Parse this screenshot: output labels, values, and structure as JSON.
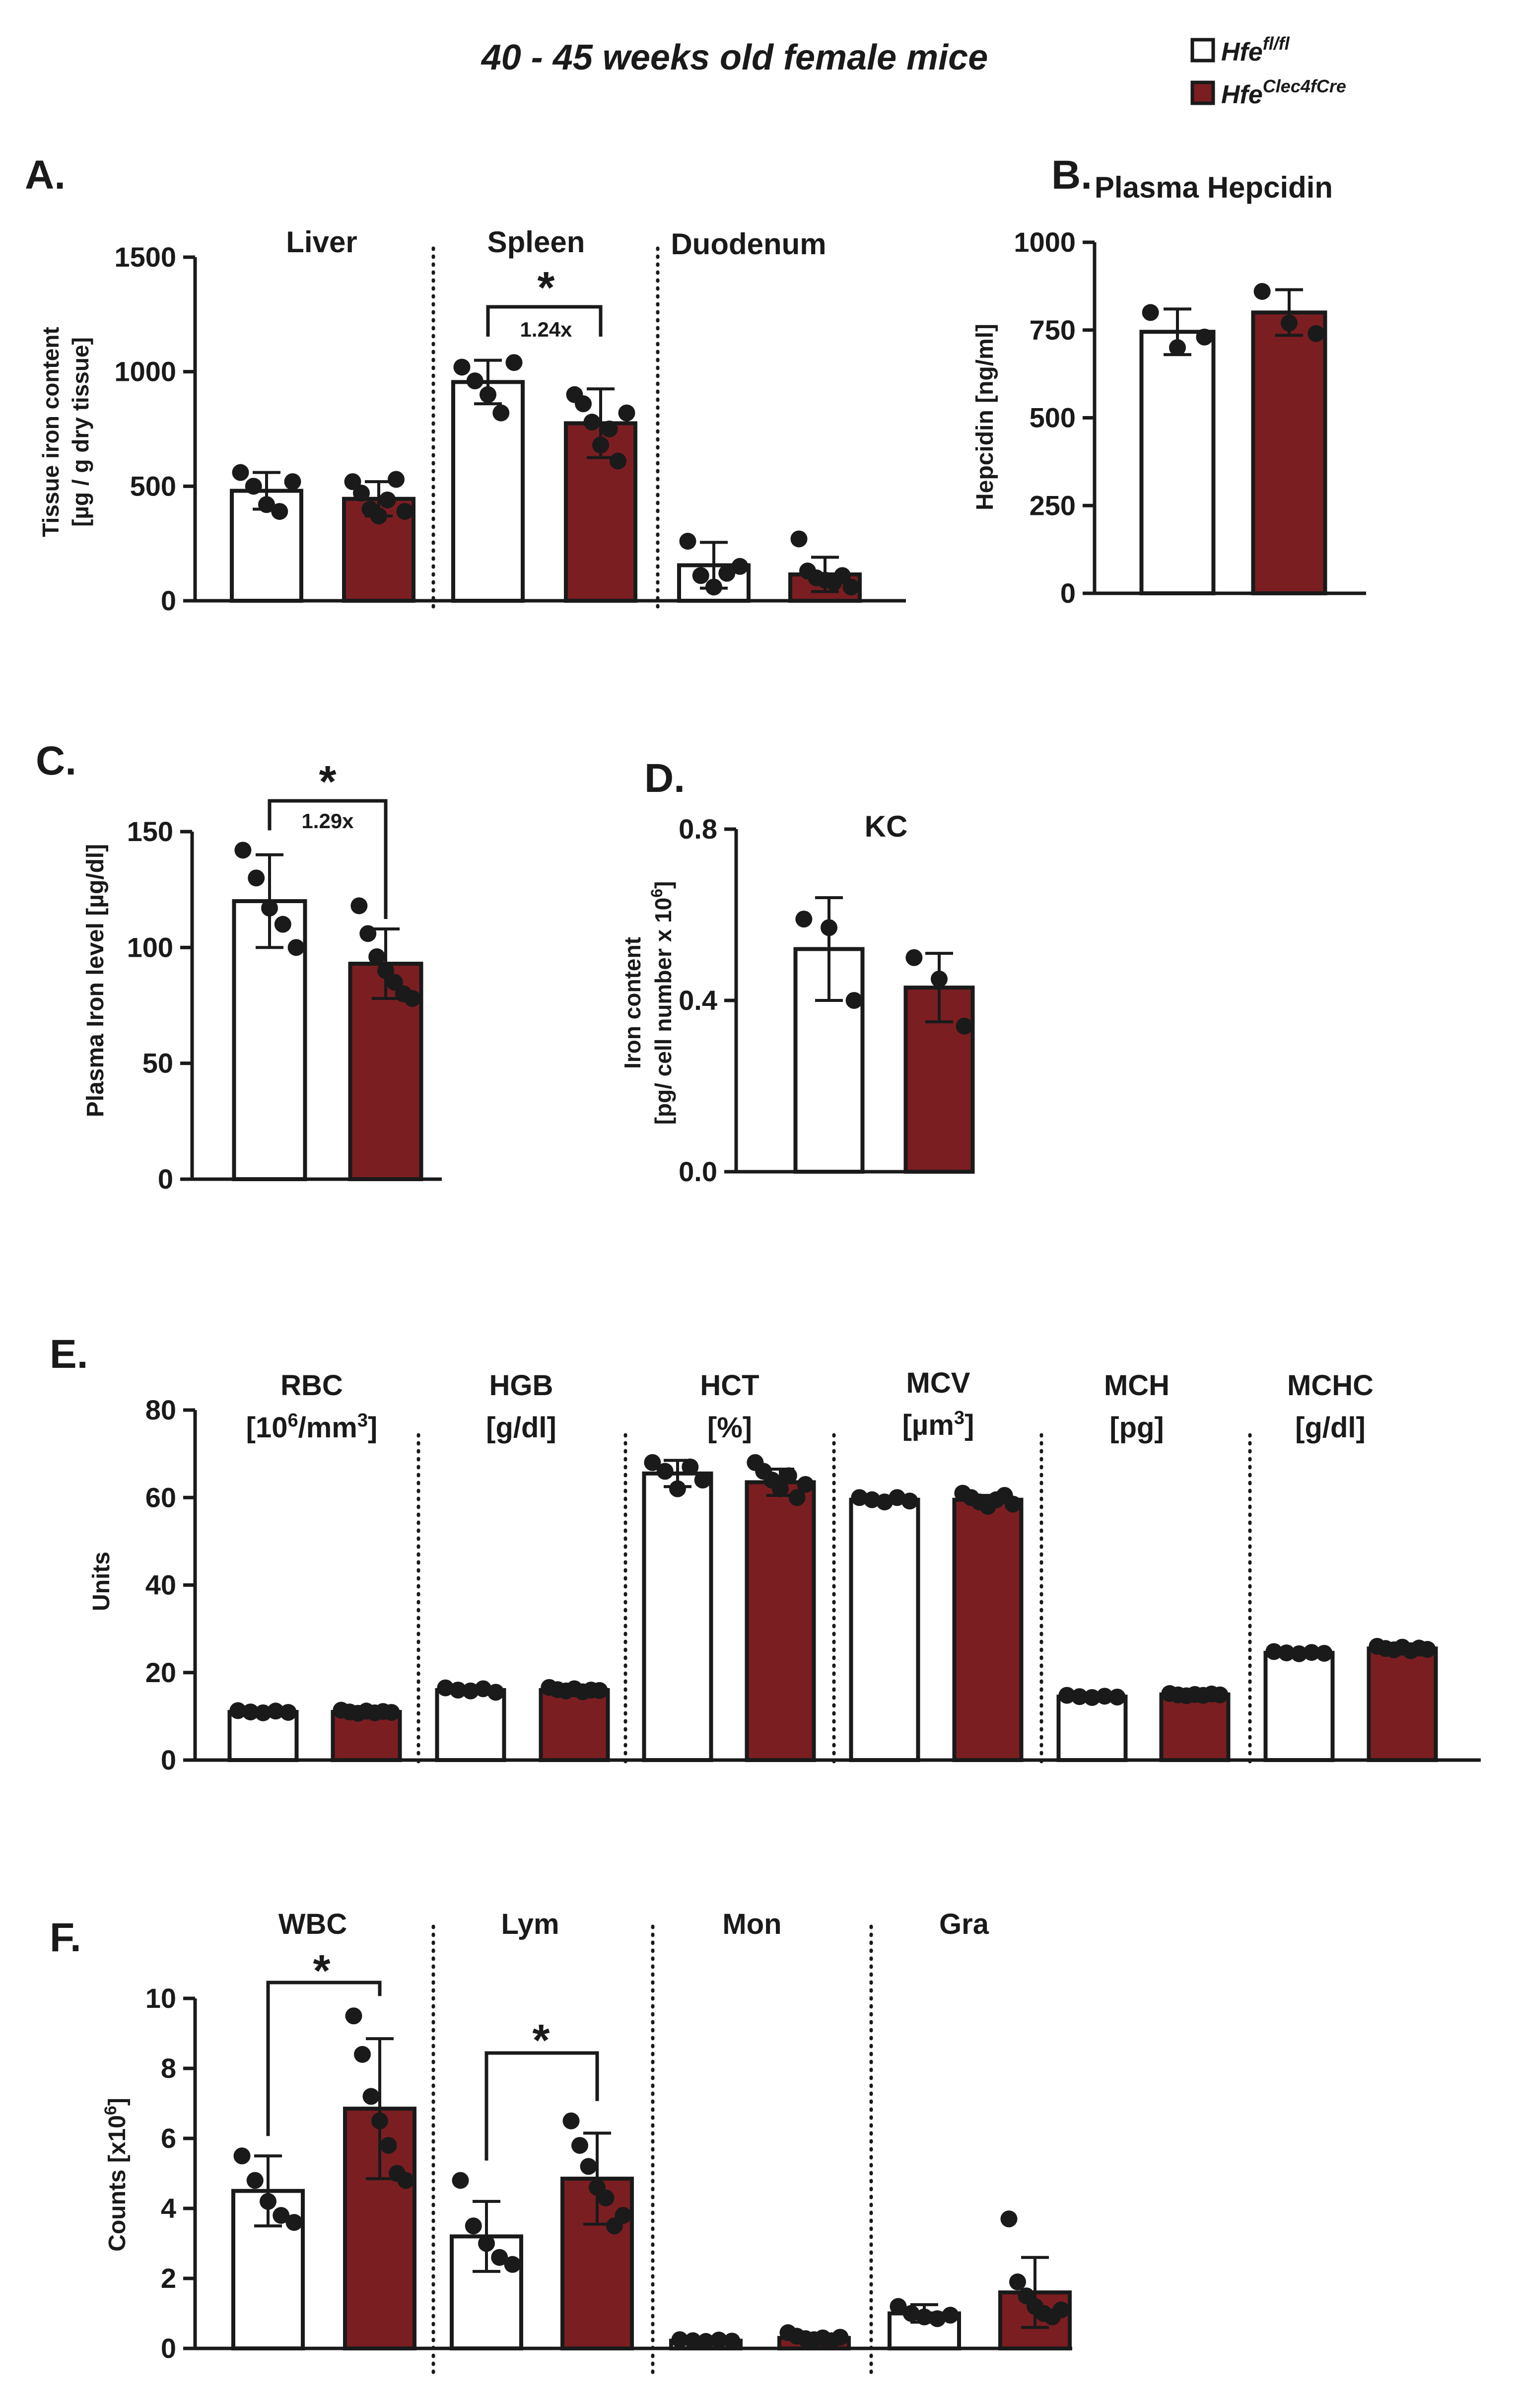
{
  "figure_title": "40 - 45 weeks old female mice",
  "legend": {
    "items": [
      {
        "base": "Hfe",
        "sup": "fl/fl",
        "fill": "#ffffff"
      },
      {
        "base": "Hfe",
        "sup": "Clec4fCre",
        "fill": "#7b1e22"
      }
    ]
  },
  "colors": {
    "control": "#ffffff",
    "knockout": "#7b1e22",
    "ink": "#1a1a1a"
  },
  "panels": {
    "A": {
      "letter": "A.",
      "ylabel_line1": "Tissue iron content",
      "ylabel_line2": "[µg / g dry tissue]",
      "groups": [
        "Liver",
        "Spleen",
        "Duodenum"
      ],
      "sig_fold": "1.24x",
      "star": "*"
    },
    "B": {
      "letter": "B.",
      "title": "Plasma Hepcidin",
      "ylabel": "Hepcidin [ng/ml]"
    },
    "C": {
      "letter": "C.",
      "ylabel": "Plasma Iron level [µg/dl]",
      "sig_fold": "1.29x",
      "star": "*"
    },
    "D": {
      "letter": "D.",
      "title": "KC",
      "ylabel_line1": "Iron content",
      "ylabel_line2": "[pg/ cell number x 10",
      "ylabel_sup": "6",
      "ylabel_end": "]"
    },
    "E": {
      "letter": "E.",
      "ylabel": "Units",
      "groups": [
        {
          "name": "RBC",
          "unit_pre": "[10",
          "unit_sup": "6",
          "unit_mid": "/mm",
          "unit_sup2": "3",
          "unit_post": "]"
        },
        {
          "name": "HGB",
          "unit_pre": "[g/dl]",
          "unit_sup": "",
          "unit_mid": "",
          "unit_sup2": "",
          "unit_post": ""
        },
        {
          "name": "HCT",
          "unit_pre": "[%]",
          "unit_sup": "",
          "unit_mid": "",
          "unit_sup2": "",
          "unit_post": ""
        },
        {
          "name": "MCV",
          "unit_pre": "[µm",
          "unit_sup": "3",
          "unit_mid": "]",
          "unit_sup2": "",
          "unit_post": ""
        },
        {
          "name": "MCH",
          "unit_pre": "[pg]",
          "unit_sup": "",
          "unit_mid": "",
          "unit_sup2": "",
          "unit_post": ""
        },
        {
          "name": "MCHC",
          "unit_pre": "[g/dl]",
          "unit_sup": "",
          "unit_mid": "",
          "unit_sup2": "",
          "unit_post": ""
        }
      ]
    },
    "F": {
      "letter": "F.",
      "ylabel_base": "Counts [x10",
      "ylabel_sup": "6",
      "ylabel_end": "]",
      "groups": [
        "WBC",
        "Lym",
        "Mon",
        "Gra"
      ],
      "star": "*"
    }
  },
  "chart_data": [
    {
      "id": "A",
      "type": "bar",
      "title": "",
      "ylabel": "Tissue iron content [µg / g dry tissue]",
      "categories": [
        "Liver",
        "Spleen",
        "Duodenum"
      ],
      "ylim": [
        0,
        1500
      ],
      "yticks": [
        0,
        500,
        1000,
        1500
      ],
      "series": [
        {
          "name": "Hfe fl/fl",
          "values": [
            480,
            955,
            155
          ],
          "sd": [
            80,
            95,
            100
          ],
          "points": [
            [
              560,
              500,
              420,
              390,
              520
            ],
            [
              1020,
              960,
              900,
              820,
              1040
            ],
            [
              260,
              110,
              60,
              120,
              150
            ]
          ]
        },
        {
          "name": "Hfe Clec4fCre",
          "values": [
            445,
            775,
            115
          ],
          "sd": [
            75,
            150,
            75
          ],
          "points": [
            [
              520,
              470,
              400,
              370,
              440,
              530,
              390
            ],
            [
              900,
              860,
              780,
              680,
              750,
              610,
              820
            ],
            [
              270,
              130,
              100,
              90,
              80,
              110,
              60
            ]
          ]
        }
      ],
      "significance": [
        {
          "category": "Spleen",
          "fold": "1.24x",
          "label": "*"
        }
      ]
    },
    {
      "id": "B",
      "type": "bar",
      "title": "Plasma Hepcidin",
      "ylabel": "Hepcidin [ng/ml]",
      "categories": [
        ""
      ],
      "ylim": [
        0,
        1000
      ],
      "yticks": [
        0,
        250,
        500,
        750,
        1000
      ],
      "series": [
        {
          "name": "Hfe fl/fl",
          "values": [
            745
          ],
          "sd": [
            65
          ],
          "points": [
            [
              800,
              700,
              730
            ]
          ]
        },
        {
          "name": "Hfe Clec4fCre",
          "values": [
            800
          ],
          "sd": [
            65
          ],
          "points": [
            [
              860,
              770,
              740
            ]
          ]
        }
      ]
    },
    {
      "id": "C",
      "type": "bar",
      "title": "",
      "ylabel": "Plasma Iron level [µg/dl]",
      "categories": [
        ""
      ],
      "ylim": [
        0,
        150
      ],
      "yticks": [
        0,
        50,
        100,
        150
      ],
      "series": [
        {
          "name": "Hfe fl/fl",
          "values": [
            120
          ],
          "sd": [
            20
          ],
          "points": [
            [
              142,
              130,
              117,
              110,
              100
            ]
          ]
        },
        {
          "name": "Hfe Clec4fCre",
          "values": [
            93
          ],
          "sd": [
            15
          ],
          "points": [
            [
              118,
              106,
              96,
              90,
              85,
              80,
              78
            ]
          ]
        }
      ],
      "significance": [
        {
          "category": "",
          "fold": "1.29x",
          "label": "*"
        }
      ]
    },
    {
      "id": "D",
      "type": "bar",
      "title": "KC",
      "ylabel": "Iron content [pg/ cell number x 10^6]",
      "categories": [
        ""
      ],
      "ylim": [
        0,
        0.8
      ],
      "yticks": [
        0.0,
        0.4,
        0.8
      ],
      "series": [
        {
          "name": "Hfe fl/fl",
          "values": [
            0.52
          ],
          "sd": [
            0.12
          ],
          "points": [
            [
              0.59,
              0.57,
              0.4
            ]
          ]
        },
        {
          "name": "Hfe Clec4fCre",
          "values": [
            0.43
          ],
          "sd": [
            0.08
          ],
          "points": [
            [
              0.5,
              0.45,
              0.34
            ]
          ]
        }
      ]
    },
    {
      "id": "E",
      "type": "bar",
      "title": "",
      "ylabel": "Units",
      "categories": [
        "RBC",
        "HGB",
        "HCT",
        "MCV",
        "MCH",
        "MCHC"
      ],
      "ylim": [
        0,
        80
      ],
      "yticks": [
        0,
        20,
        40,
        60,
        80
      ],
      "series": [
        {
          "name": "Hfe fl/fl",
          "values": [
            11,
            16,
            65.5,
            59.5,
            14.5,
            24.5
          ],
          "sd": [
            0.5,
            0.7,
            3,
            0.6,
            0.4,
            0.5
          ],
          "points": [
            [
              11.3,
              11.0,
              10.8,
              11.2,
              10.9
            ],
            [
              16.5,
              16.0,
              15.8,
              16.3,
              15.5
            ],
            [
              68,
              66,
              62,
              67,
              64
            ],
            [
              60,
              59.5,
              59,
              60,
              59.2
            ],
            [
              14.8,
              14.5,
              14.3,
              14.6,
              14.4
            ],
            [
              24.8,
              24.5,
              24.3,
              24.6,
              24.4
            ]
          ]
        },
        {
          "name": "Hfe Clec4fCre",
          "values": [
            11,
            16,
            63.5,
            59.5,
            15,
            25.5
          ],
          "sd": [
            0.6,
            0.8,
            3,
            1,
            0.4,
            0.5
          ],
          "points": [
            [
              11.4,
              11.0,
              10.7,
              11.2,
              10.8,
              11.1,
              10.9
            ],
            [
              16.6,
              16.1,
              15.8,
              16.3,
              15.6,
              16.0,
              15.9
            ],
            [
              68,
              66,
              64,
              62,
              65,
              60,
              63
            ],
            [
              61,
              60,
              59,
              58,
              59.5,
              60.5,
              58.5
            ],
            [
              15.2,
              14.9,
              14.7,
              15.0,
              14.8,
              15.1,
              14.9
            ],
            [
              26,
              25.5,
              25.2,
              25.8,
              25.0,
              25.6,
              25.3
            ]
          ]
        }
      ]
    },
    {
      "id": "F",
      "type": "bar",
      "title": "",
      "ylabel": "Counts [x10^6]",
      "categories": [
        "WBC",
        "Lym",
        "Mon",
        "Gra"
      ],
      "ylim": [
        0,
        10
      ],
      "yticks": [
        0,
        2,
        4,
        6,
        8,
        10
      ],
      "series": [
        {
          "name": "Hfe fl/fl",
          "values": [
            4.5,
            3.2,
            0.22,
            1.0
          ],
          "sd": [
            1.0,
            1.0,
            0.05,
            0.25
          ],
          "points": [
            [
              5.5,
              4.8,
              4.2,
              3.8,
              3.6
            ],
            [
              4.8,
              3.5,
              3.0,
              2.6,
              2.4
            ],
            [
              0.25,
              0.22,
              0.2,
              0.24,
              0.21
            ],
            [
              1.2,
              1.0,
              0.9,
              0.85,
              0.95
            ]
          ]
        },
        {
          "name": "Hfe Clec4fCre",
          "values": [
            6.85,
            4.85,
            0.3,
            1.6
          ],
          "sd": [
            2.0,
            1.3,
            0.1,
            1.0
          ],
          "points": [
            [
              9.5,
              8.4,
              7.2,
              6.5,
              5.8,
              5.0,
              4.8
            ],
            [
              6.5,
              5.8,
              5.2,
              4.6,
              4.3,
              3.5,
              3.8
            ],
            [
              0.45,
              0.35,
              0.28,
              0.25,
              0.3,
              0.22,
              0.32
            ],
            [
              3.7,
              1.9,
              1.5,
              1.2,
              1.0,
              0.9,
              1.1
            ]
          ]
        }
      ],
      "significance": [
        {
          "category": "WBC",
          "label": "*"
        },
        {
          "category": "Lym",
          "label": "*"
        }
      ]
    }
  ]
}
